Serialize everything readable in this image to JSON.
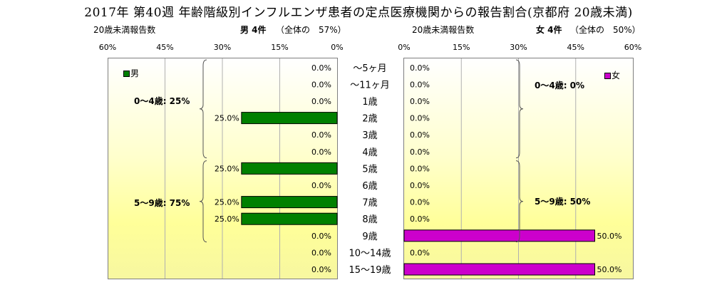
{
  "title": "2017年 第40週 年齢階級別インフルエンザ患者の定点医療機関からの報告割合(京都府 20歳未満)",
  "left_header": {
    "count_label": "20歳未満報告数",
    "sex_count": "男 4件",
    "share": "（全体の　57%）"
  },
  "right_header": {
    "count_label": "20歳未満報告数",
    "sex_count": "女 4件",
    "share": "（全体の　50%）"
  },
  "legend": {
    "male": "男",
    "female": "女"
  },
  "group_labels": {
    "male_0_4": "0～4歳: 25%",
    "male_5_9": "5～9歳: 75%",
    "female_0_4": "0～4歳: 0%",
    "female_5_9": "5～9歳: 50%"
  },
  "colors": {
    "male": "#008000",
    "female": "#cc00cc",
    "grid": "#b0b0b0"
  },
  "chart_data": {
    "type": "bar",
    "orientation": "horizontal",
    "categories": [
      "～5ヶ月",
      "～11ヶ月",
      "1歳",
      "2歳",
      "3歳",
      "4歳",
      "5歳",
      "6歳",
      "7歳",
      "8歳",
      "9歳",
      "10～14歳",
      "15～19歳"
    ],
    "series": [
      {
        "name": "男",
        "values": [
          0,
          0,
          0,
          25,
          0,
          0,
          25,
          0,
          25,
          25,
          0,
          0,
          0
        ],
        "value_labels": [
          "0.0%",
          "0.0%",
          "0.0%",
          "25.0%",
          "0.0%",
          "0.0%",
          "25.0%",
          "0.0%",
          "25.0%",
          "25.0%",
          "0.0%",
          "0.0%",
          "0.0%"
        ]
      },
      {
        "name": "女",
        "values": [
          0,
          0,
          0,
          0,
          0,
          0,
          0,
          0,
          0,
          0,
          50,
          0,
          50
        ],
        "value_labels": [
          "0.0%",
          "0.0%",
          "0.0%",
          "0.0%",
          "0.0%",
          "0.0%",
          "0.0%",
          "0.0%",
          "0.0%",
          "0.0%",
          "50.0%",
          "0.0%",
          "50.0%"
        ]
      }
    ],
    "male_axis_ticks": [
      "60%",
      "45%",
      "30%",
      "15%",
      "0%"
    ],
    "female_axis_ticks": [
      "0%",
      "15%",
      "30%",
      "45%",
      "60%"
    ],
    "xlim": [
      0,
      60
    ],
    "grid": true,
    "legend_position": "top inside each panel"
  }
}
